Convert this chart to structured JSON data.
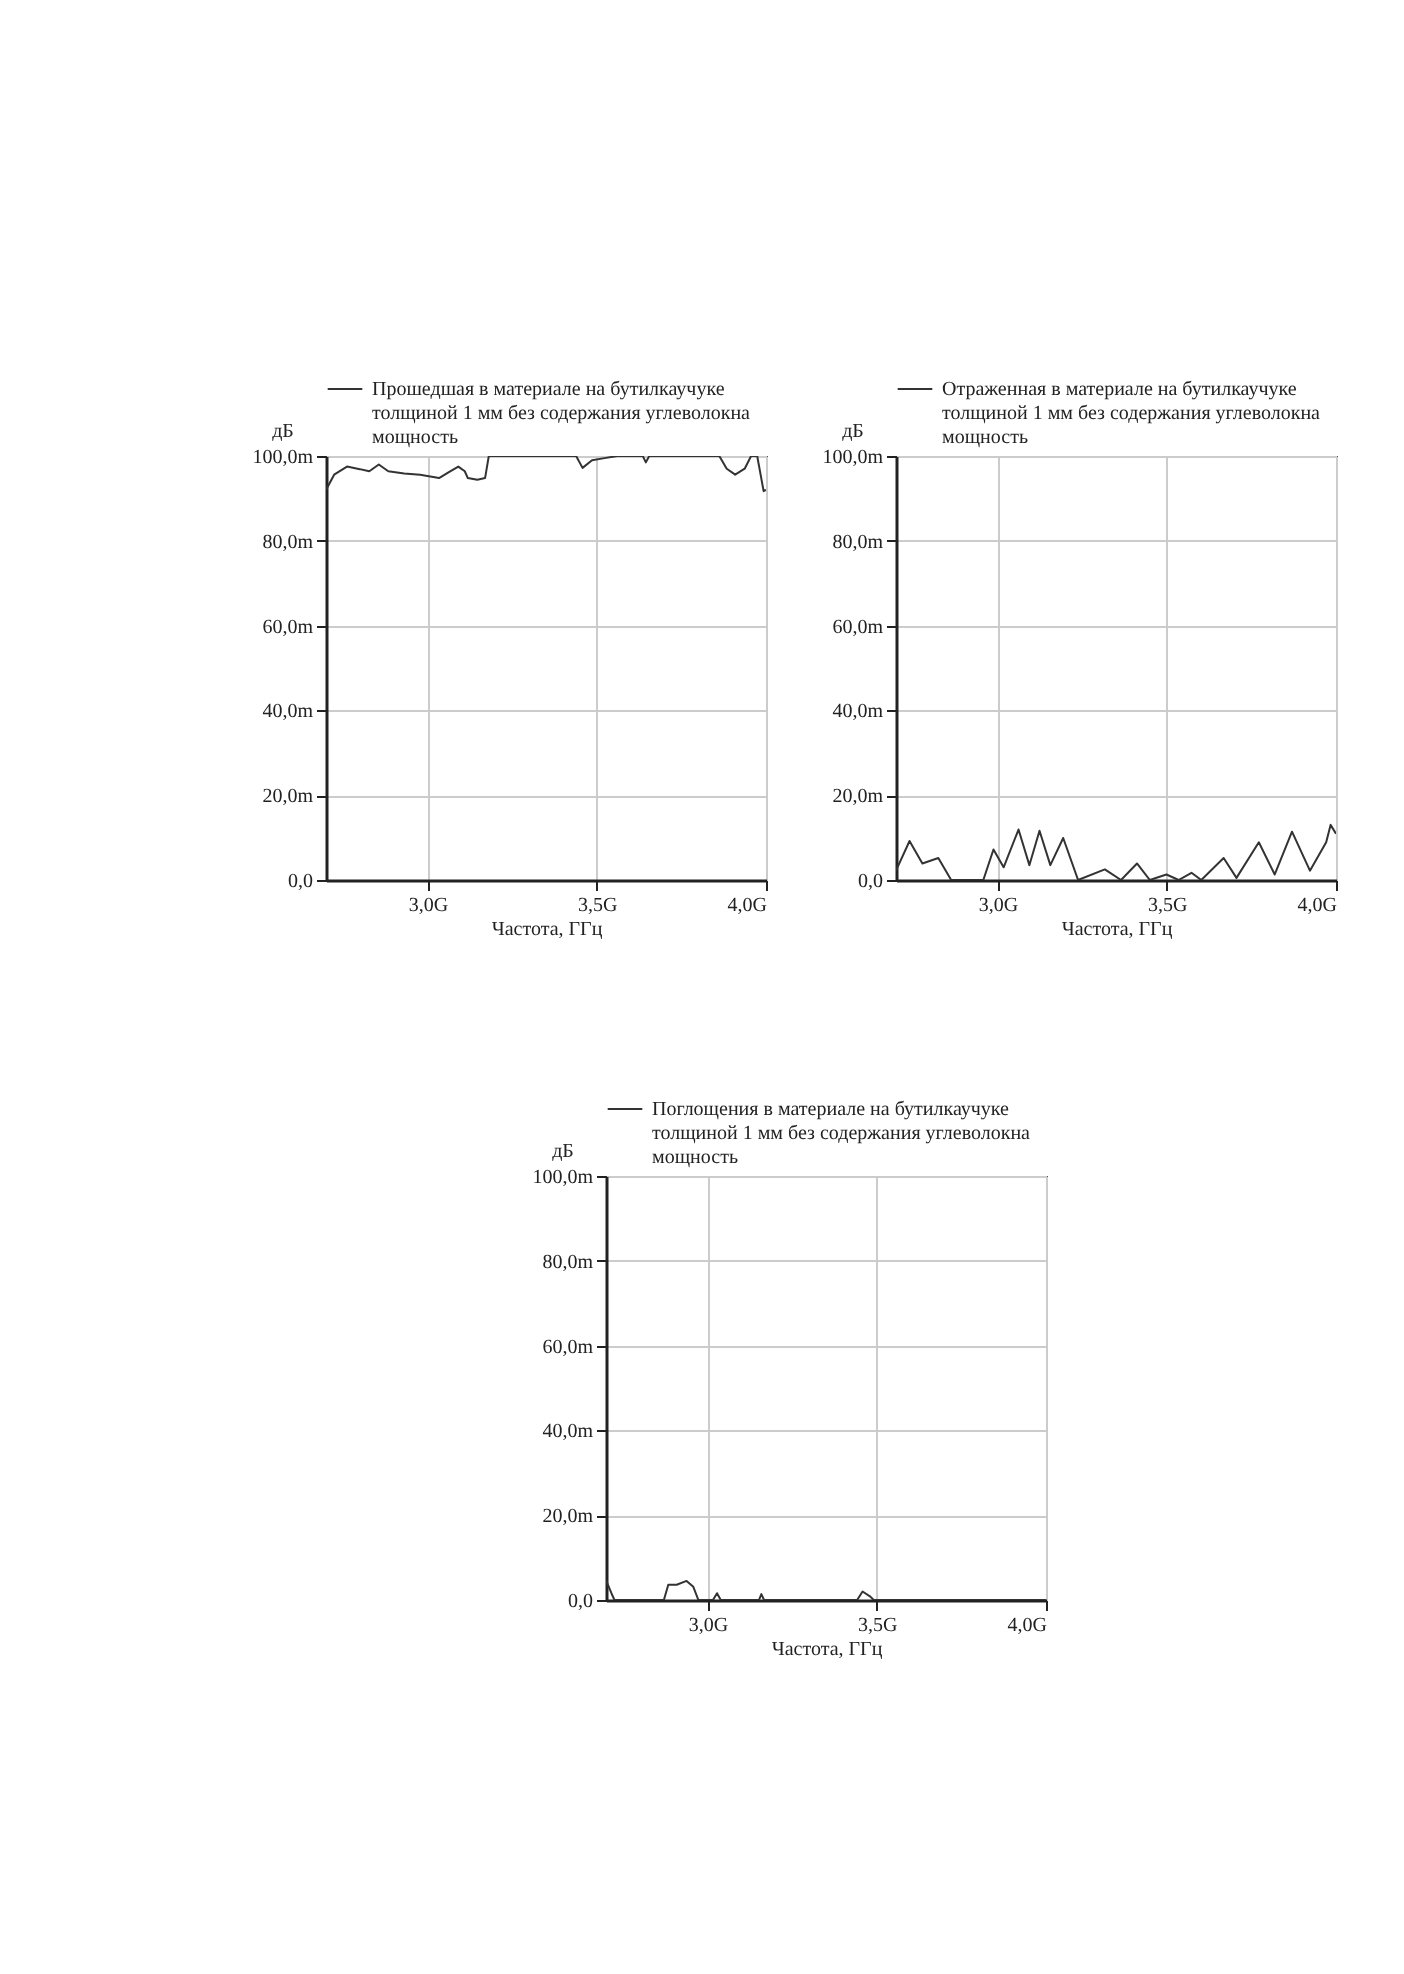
{
  "chart_data": [
    {
      "type": "line",
      "xlabel": "Частота, ГГц",
      "ylabel": "дБ",
      "xlim": [
        2.7,
        4.0
      ],
      "ylim": [
        0,
        100
      ],
      "xticks": [
        {
          "value": 3,
          "label": "3,0G"
        },
        {
          "value": 3.5,
          "label": "3,5G"
        },
        {
          "value": 4,
          "label": "4,0G"
        }
      ],
      "yticks": [
        {
          "value": 0,
          "label": "0,0"
        },
        {
          "value": 20,
          "label": "20,0m"
        },
        {
          "value": 40,
          "label": "40,0m"
        },
        {
          "value": 60,
          "label": "60,0m"
        },
        {
          "value": 80,
          "label": "80,0m"
        },
        {
          "value": 100,
          "label": "100,0m"
        }
      ],
      "grid": true,
      "legend": "top",
      "line_style": "solid",
      "series": [
        {
          "name": "Прошедшая в материале на бутилкаучуке толщиной 1 мм без содержания углеволокна мощность",
          "color": "#333333",
          "x": [
            2.7,
            2.724,
            2.762,
            2.8,
            2.828,
            2.856,
            2.884,
            2.931,
            2.978,
            3.034,
            3.063,
            3.091,
            3.11,
            3.119,
            3.147,
            3.17,
            3.181,
            3.185,
            3.41,
            3.439,
            3.458,
            3.486,
            3.523,
            3.561,
            3.636,
            3.645,
            3.655,
            3.786,
            3.862,
            3.884,
            3.909,
            3.937,
            3.956,
            3.974,
            3.993,
            4.0
          ],
          "values": [
            92,
            95.6,
            97.5,
            96.9,
            96.4,
            98,
            96.4,
            95.9,
            95.6,
            94.8,
            96.2,
            97.5,
            96.4,
            94.8,
            94.4,
            94.8,
            100,
            100,
            100,
            100,
            97.2,
            99,
            99.5,
            100,
            100,
            98.5,
            100,
            100,
            100,
            97,
            95.6,
            97,
            100,
            100,
            91.7,
            92
          ]
        }
      ]
    },
    {
      "type": "line",
      "xlabel": "Частота, ГГц",
      "ylabel": "дБ",
      "xlim": [
        2.7,
        4.0
      ],
      "ylim": [
        0,
        100
      ],
      "xticks": [
        {
          "value": 3,
          "label": "3,0G"
        },
        {
          "value": 3.5,
          "label": "3,5G"
        },
        {
          "value": 4,
          "label": "4,0G"
        }
      ],
      "yticks": [
        {
          "value": 0,
          "label": "0,0"
        },
        {
          "value": 20,
          "label": "20,0m"
        },
        {
          "value": 40,
          "label": "40,0m"
        },
        {
          "value": 60,
          "label": "60,0m"
        },
        {
          "value": 80,
          "label": "80,0m"
        },
        {
          "value": 100,
          "label": "100,0m"
        }
      ],
      "grid": true,
      "legend": "top",
      "line_style": "solid",
      "series": [
        {
          "name": "Отраженная в материале на бутилкаучуке толщиной 1 мм без содержания углеволокна мощность",
          "color": "#333333",
          "x": [
            2.7,
            2.74,
            2.778,
            2.825,
            2.863,
            2.91,
            2.958,
            2.988,
            3.018,
            3.062,
            3.094,
            3.124,
            3.156,
            3.194,
            3.238,
            3.317,
            3.365,
            3.412,
            3.45,
            3.499,
            3.535,
            3.573,
            3.602,
            3.668,
            3.706,
            3.772,
            3.819,
            3.87,
            3.923,
            3.971,
            3.984,
            4.0
          ],
          "values": [
            2.2,
            9.2,
            3.9,
            5.2,
            0,
            0,
            0,
            7.2,
            3,
            11.9,
            3.5,
            11.6,
            3.5,
            9.9,
            0,
            2.5,
            0,
            3.9,
            0,
            1.3,
            0,
            1.7,
            0,
            5.2,
            0.5,
            8.9,
            1.3,
            11.4,
            2.2,
            8.9,
            13,
            10.9
          ]
        }
      ]
    },
    {
      "type": "line",
      "xlabel": "Частота, ГГц",
      "ylabel": "дБ",
      "xlim": [
        2.7,
        4.0
      ],
      "ylim": [
        0,
        100
      ],
      "xticks": [
        {
          "value": 3,
          "label": "3,0G"
        },
        {
          "value": 3.5,
          "label": "3,5G"
        },
        {
          "value": 4,
          "label": "4,0G"
        }
      ],
      "yticks": [
        {
          "value": 0,
          "label": "0,0"
        },
        {
          "value": 20,
          "label": "20,0m"
        },
        {
          "value": 40,
          "label": "40,0m"
        },
        {
          "value": 60,
          "label": "60,0m"
        },
        {
          "value": 80,
          "label": "80,0m"
        },
        {
          "value": 100,
          "label": "100,0m"
        }
      ],
      "grid": true,
      "legend": "top",
      "line_style": "solid",
      "series": [
        {
          "name": "Поглощения в материале на бутилкаучуке толщиной 1 мм без содержания углеволокна мощность",
          "color": "#333333",
          "x": [
            2.7,
            2.716,
            2.725,
            2.871,
            2.884,
            2.909,
            2.938,
            2.958,
            2.973,
            3.016,
            3.028,
            3.039,
            3.152,
            3.159,
            3.167,
            3.442,
            3.458,
            3.481,
            3.491,
            4.0
          ],
          "values": [
            4.7,
            1.6,
            0,
            0,
            3.6,
            3.6,
            4.5,
            3.1,
            0,
            0,
            1.6,
            0,
            0,
            1.4,
            0,
            0,
            2,
            0.8,
            0,
            0
          ]
        }
      ]
    }
  ]
}
